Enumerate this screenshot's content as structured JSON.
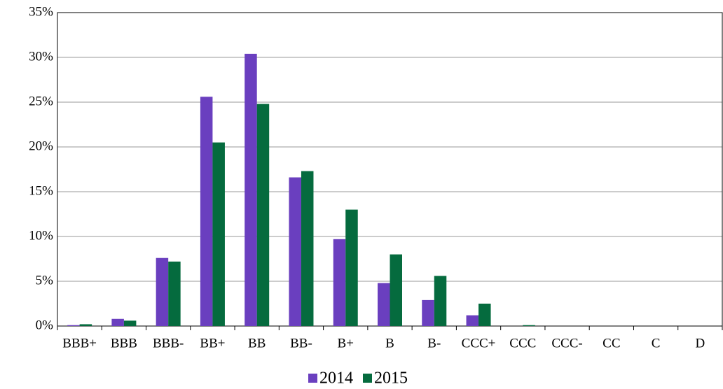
{
  "chart_data": {
    "type": "bar",
    "categories": [
      "BBB+",
      "BBB",
      "BBB-",
      "BB+",
      "BB",
      "BB-",
      "B+",
      "B",
      "B-",
      "CCC+",
      "CCC",
      "CCC-",
      "CC",
      "C",
      "D"
    ],
    "series": [
      {
        "name": "2014",
        "color": "#6a3fbf",
        "values": [
          0.1,
          0.8,
          7.6,
          25.6,
          30.4,
          16.6,
          9.7,
          4.8,
          2.9,
          1.2,
          0,
          0,
          0,
          0,
          0
        ]
      },
      {
        "name": "2015",
        "color": "#056b3e",
        "values": [
          0.2,
          0.6,
          7.2,
          20.5,
          24.8,
          17.3,
          13.0,
          8.0,
          5.6,
          2.5,
          0.1,
          0,
          0,
          0,
          0
        ]
      }
    ],
    "ylim": [
      0,
      35
    ],
    "yticks": [
      {
        "value": 0,
        "label": "0%"
      },
      {
        "value": 5,
        "label": "5%"
      },
      {
        "value": 10,
        "label": "10%"
      },
      {
        "value": 15,
        "label": "15%"
      },
      {
        "value": 20,
        "label": "20%"
      },
      {
        "value": 25,
        "label": "25%"
      },
      {
        "value": 30,
        "label": "30%"
      },
      {
        "value": 35,
        "label": "35%"
      }
    ],
    "grid": true,
    "legend": "bottom"
  }
}
